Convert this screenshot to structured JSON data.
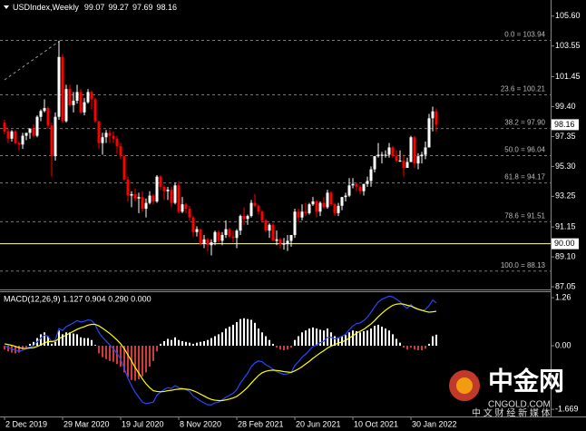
{
  "chart_data": [
    {
      "type": "candlestick",
      "title": "USDIndex,Weekly",
      "up_color": "#ffffff",
      "down_color": "#ff0000",
      "xlim": [
        -1.25,
        150.5
      ],
      "xticks": [
        {
          "value": 0,
          "label": "2 Dec 2019"
        },
        {
          "value": 16,
          "label": "29 Mar 2020"
        },
        {
          "value": 32,
          "label": "19 Jul 2020"
        },
        {
          "value": 48,
          "label": "8 Nov 2020"
        },
        {
          "value": 64,
          "label": "28 Feb 2021"
        },
        {
          "value": 80,
          "label": "20 Jun 2021"
        },
        {
          "value": 96,
          "label": "10 Oct 2021"
        },
        {
          "value": 112,
          "label": "30 Jan 2022"
        }
      ],
      "ylim": [
        86.93,
        106.58
      ],
      "yticks": [
        {
          "value": 105.6,
          "label": "105.60"
        },
        {
          "value": 103.55,
          "label": "103.55"
        },
        {
          "value": 101.45,
          "label": "101.45"
        },
        {
          "value": 99.4,
          "label": "99.40"
        },
        {
          "value": 97.35,
          "label": "97.35"
        },
        {
          "value": 95.3,
          "label": "95.30"
        },
        {
          "value": 93.25,
          "label": "93.25"
        },
        {
          "value": 91.15,
          "label": "91.15"
        },
        {
          "value": 89.1,
          "label": "89.10"
        },
        {
          "value": 87.05,
          "label": "87.05"
        }
      ],
      "fibonacci": [
        {
          "label": "0.0 = 103.94",
          "value": 103.94
        },
        {
          "label": "23.6 = 100.21",
          "value": 100.21
        },
        {
          "label": "38.2 = 97.90",
          "value": 97.9
        },
        {
          "label": "50.0 = 96.04",
          "value": 96.04
        },
        {
          "label": "61.8 = 94.17",
          "value": 94.17
        },
        {
          "label": "78.6 = 91.51",
          "value": 91.51
        },
        {
          "label": "100.0 = 88.13",
          "value": 88.13
        }
      ],
      "hline": {
        "value": 90.0,
        "label": "90.00",
        "color": "#ffffcc"
      },
      "ohlc": [
        [
          98.3,
          98.5,
          97.5,
          97.7
        ],
        [
          97.7,
          97.9,
          96.9,
          97.2
        ],
        [
          97.2,
          97.8,
          97.0,
          97.7
        ],
        [
          97.7,
          97.8,
          96.8,
          96.9
        ],
        [
          96.9,
          97.0,
          96.4,
          96.8
        ],
        [
          96.8,
          97.6,
          96.5,
          97.4
        ],
        [
          97.4,
          97.6,
          97.1,
          97.6
        ],
        [
          97.6,
          97.9,
          97.2,
          97.9
        ],
        [
          97.9,
          98.2,
          97.3,
          97.4
        ],
        [
          97.4,
          98.8,
          97.3,
          98.7
        ],
        [
          98.7,
          99.2,
          98.4,
          99.1
        ],
        [
          99.1,
          99.9,
          99.0,
          99.3
        ],
        [
          99.3,
          99.4,
          97.9,
          98.1
        ],
        [
          98.1,
          98.3,
          94.6,
          96.0
        ],
        [
          96.0,
          99.0,
          95.7,
          98.7
        ],
        [
          98.7,
          103.9,
          98.5,
          102.8
        ],
        [
          102.8,
          103.0,
          98.3,
          98.4
        ],
        [
          98.4,
          100.9,
          98.3,
          100.6
        ],
        [
          100.6,
          100.9,
          99.4,
          99.5
        ],
        [
          99.5,
          100.4,
          99.0,
          99.8
        ],
        [
          99.8,
          100.9,
          99.6,
          100.4
        ],
        [
          100.4,
          100.6,
          98.9,
          99.0
        ],
        [
          99.0,
          100.0,
          98.8,
          99.7
        ],
        [
          99.7,
          100.6,
          99.6,
          100.4
        ],
        [
          100.4,
          100.5,
          99.2,
          99.9
        ],
        [
          99.9,
          100.0,
          98.3,
          98.4
        ],
        [
          98.4,
          98.4,
          96.5,
          96.9
        ],
        [
          96.9,
          97.6,
          96.1,
          97.3
        ],
        [
          97.3,
          97.8,
          96.9,
          97.6
        ],
        [
          97.6,
          97.8,
          96.9,
          97.4
        ],
        [
          97.4,
          97.7,
          96.9,
          97.2
        ],
        [
          97.2,
          97.4,
          96.2,
          96.7
        ],
        [
          96.7,
          96.9,
          95.8,
          96.0
        ],
        [
          96.0,
          96.1,
          94.3,
          94.4
        ],
        [
          94.4,
          94.6,
          92.9,
          93.3
        ],
        [
          93.3,
          93.6,
          92.5,
          93.4
        ],
        [
          93.4,
          93.8,
          92.9,
          93.1
        ],
        [
          93.1,
          93.5,
          92.1,
          93.2
        ],
        [
          93.2,
          93.6,
          92.2,
          92.4
        ],
        [
          92.4,
          93.1,
          91.8,
          92.8
        ],
        [
          92.8,
          93.6,
          92.7,
          93.3
        ],
        [
          93.3,
          93.4,
          92.7,
          92.9
        ],
        [
          92.9,
          94.7,
          92.8,
          94.6
        ],
        [
          94.6,
          94.7,
          93.7,
          93.9
        ],
        [
          93.9,
          94.0,
          93.0,
          93.6
        ],
        [
          93.6,
          93.9,
          93.0,
          93.7
        ],
        [
          93.7,
          93.9,
          92.5,
          92.8
        ],
        [
          92.8,
          94.2,
          92.7,
          94.0
        ],
        [
          94.0,
          94.3,
          92.1,
          92.2
        ],
        [
          92.2,
          93.2,
          92.1,
          92.7
        ],
        [
          92.7,
          92.8,
          92.1,
          92.4
        ],
        [
          92.4,
          92.6,
          91.6,
          91.8
        ],
        [
          91.8,
          91.9,
          90.5,
          90.8
        ],
        [
          90.8,
          91.2,
          90.5,
          91.0
        ],
        [
          91.0,
          91.0,
          89.9,
          90.0
        ],
        [
          90.0,
          90.6,
          89.7,
          90.3
        ],
        [
          90.3,
          90.4,
          89.5,
          89.9
        ],
        [
          89.9,
          90.3,
          89.2,
          90.1
        ],
        [
          90.1,
          90.9,
          89.9,
          90.8
        ],
        [
          90.8,
          90.9,
          90.1,
          90.2
        ],
        [
          90.2,
          90.8,
          89.9,
          90.6
        ],
        [
          90.6,
          91.6,
          90.4,
          91.0
        ],
        [
          91.0,
          91.1,
          90.4,
          90.5
        ],
        [
          90.5,
          90.9,
          90.1,
          90.4
        ],
        [
          90.4,
          91.0,
          89.7,
          90.9
        ],
        [
          90.9,
          92.0,
          90.6,
          91.9
        ],
        [
          91.9,
          92.5,
          91.3,
          91.7
        ],
        [
          91.7,
          92.0,
          91.3,
          91.9
        ],
        [
          91.9,
          93.0,
          91.8,
          92.8
        ],
        [
          92.8,
          93.4,
          92.5,
          92.6
        ],
        [
          92.6,
          92.7,
          92.0,
          92.2
        ],
        [
          92.2,
          92.3,
          91.5,
          91.6
        ],
        [
          91.6,
          91.7,
          90.8,
          90.9
        ],
        [
          90.9,
          91.4,
          90.4,
          91.3
        ],
        [
          91.3,
          91.4,
          90.2,
          90.2
        ],
        [
          90.2,
          90.9,
          89.9,
          90.3
        ],
        [
          90.3,
          90.4,
          89.7,
          90.0
        ],
        [
          90.0,
          90.4,
          89.6,
          90.0
        ],
        [
          90.0,
          90.6,
          89.5,
          90.2
        ],
        [
          90.2,
          90.6,
          89.8,
          90.6
        ],
        [
          90.6,
          92.4,
          90.4,
          92.2
        ],
        [
          92.2,
          92.4,
          91.5,
          91.8
        ],
        [
          91.8,
          92.7,
          91.6,
          92.2
        ],
        [
          92.2,
          92.8,
          91.9,
          92.1
        ],
        [
          92.1,
          92.8,
          92.0,
          92.7
        ],
        [
          92.7,
          93.2,
          92.6,
          92.9
        ],
        [
          92.9,
          93.0,
          91.8,
          92.2
        ],
        [
          92.2,
          92.9,
          91.9,
          92.8
        ],
        [
          92.8,
          93.2,
          92.4,
          92.5
        ],
        [
          92.5,
          93.7,
          92.4,
          93.5
        ],
        [
          93.5,
          93.6,
          92.6,
          92.7
        ],
        [
          92.7,
          92.8,
          91.9,
          92.1
        ],
        [
          92.1,
          92.8,
          91.9,
          92.6
        ],
        [
          92.6,
          93.2,
          92.3,
          93.2
        ],
        [
          93.2,
          93.5,
          92.9,
          93.3
        ],
        [
          93.3,
          94.5,
          93.2,
          94.0
        ],
        [
          94.0,
          94.5,
          93.8,
          94.1
        ],
        [
          94.1,
          94.2,
          93.6,
          93.9
        ],
        [
          93.9,
          94.0,
          93.4,
          93.6
        ],
        [
          93.6,
          94.1,
          93.3,
          94.1
        ],
        [
          94.1,
          94.6,
          93.9,
          94.3
        ],
        [
          94.3,
          95.3,
          93.9,
          95.1
        ],
        [
          95.1,
          96.0,
          94.9,
          96.0
        ],
        [
          96.0,
          96.9,
          95.9,
          96.1
        ],
        [
          96.1,
          96.3,
          95.5,
          96.1
        ],
        [
          96.1,
          96.4,
          95.9,
          96.1
        ],
        [
          96.1,
          96.9,
          95.9,
          96.6
        ],
        [
          96.6,
          96.7,
          95.9,
          96.0
        ],
        [
          96.0,
          96.4,
          95.6,
          95.7
        ],
        [
          95.7,
          96.4,
          95.6,
          95.7
        ],
        [
          95.7,
          96.1,
          94.6,
          95.2
        ],
        [
          95.2,
          95.9,
          95.2,
          95.6
        ],
        [
          95.6,
          97.4,
          95.6,
          97.3
        ],
        [
          97.3,
          97.4,
          95.2,
          95.5
        ],
        [
          95.5,
          96.2,
          95.1,
          96.0
        ],
        [
          96.0,
          96.3,
          95.5,
          96.1
        ],
        [
          96.1,
          97.0,
          95.8,
          96.6
        ],
        [
          96.6,
          98.9,
          96.6,
          98.6
        ],
        [
          98.6,
          99.4,
          97.7,
          99.07
        ],
        [
          99.07,
          99.27,
          97.69,
          98.16
        ]
      ]
    },
    {
      "type": "macd",
      "title": "MACD(12,26,9) 1.127 0.904 0.290 0.000",
      "ylim": [
        -1.833,
        1.405
      ],
      "yticks": [
        1.26,
        {
          "value": 0,
          "label": "0.00"
        },
        -1.669
      ],
      "histogram": {
        "up_color": "#ffffff",
        "down_color": "#d03a3a",
        "values": [
          -0.1,
          -0.15,
          -0.18,
          -0.2,
          -0.18,
          -0.1,
          -0.05,
          0.05,
          0.1,
          0.2,
          0.3,
          0.35,
          0.25,
          0.05,
          0.1,
          0.4,
          0.3,
          0.35,
          0.35,
          0.32,
          0.3,
          0.22,
          0.2,
          0.2,
          0.15,
          0.02,
          -0.2,
          -0.3,
          -0.35,
          -0.4,
          -0.42,
          -0.48,
          -0.55,
          -0.7,
          -0.82,
          -0.9,
          -0.92,
          -0.88,
          -0.8,
          -0.7,
          -0.55,
          -0.4,
          -0.15,
          0.05,
          0.12,
          0.18,
          0.15,
          0.22,
          0.15,
          0.12,
          0.1,
          0.08,
          0.05,
          0.08,
          0.1,
          0.12,
          0.15,
          0.2,
          0.25,
          0.3,
          0.35,
          0.45,
          0.5,
          0.55,
          0.62,
          0.7,
          0.72,
          0.7,
          0.68,
          0.6,
          0.45,
          0.35,
          0.25,
          0.15,
          0.05,
          -0.05,
          -0.1,
          -0.12,
          -0.1,
          -0.05,
          0.15,
          0.25,
          0.35,
          0.4,
          0.45,
          0.48,
          0.45,
          0.42,
          0.4,
          0.45,
          0.35,
          0.25,
          0.22,
          0.25,
          0.28,
          0.35,
          0.4,
          0.38,
          0.35,
          0.38,
          0.4,
          0.45,
          0.52,
          0.55,
          0.5,
          0.45,
          0.4,
          0.3,
          0.18,
          0.08,
          -0.05,
          -0.1,
          -0.05,
          -0.1,
          -0.12,
          -0.12,
          -0.08,
          0.05,
          0.25,
          0.29
        ]
      },
      "macd_line": {
        "color": "#2846ff",
        "values": [
          0.0,
          -0.05,
          -0.08,
          -0.12,
          -0.15,
          -0.12,
          -0.08,
          -0.03,
          0.0,
          0.1,
          0.2,
          0.28,
          0.25,
          0.1,
          0.15,
          0.45,
          0.4,
          0.5,
          0.55,
          0.6,
          0.66,
          0.62,
          0.64,
          0.68,
          0.66,
          0.55,
          0.35,
          0.22,
          0.12,
          0.02,
          -0.08,
          -0.2,
          -0.35,
          -0.6,
          -0.85,
          -1.05,
          -1.22,
          -1.35,
          -1.48,
          -1.52,
          -1.5,
          -1.48,
          -1.3,
          -1.22,
          -1.15,
          -1.1,
          -1.12,
          -1.05,
          -1.1,
          -1.12,
          -1.15,
          -1.2,
          -1.32,
          -1.38,
          -1.45,
          -1.5,
          -1.55,
          -1.55,
          -1.5,
          -1.48,
          -1.42,
          -1.35,
          -1.3,
          -1.25,
          -1.15,
          -0.98,
          -0.85,
          -0.72,
          -0.55,
          -0.45,
          -0.4,
          -0.42,
          -0.5,
          -0.55,
          -0.62,
          -0.68,
          -0.72,
          -0.75,
          -0.74,
          -0.7,
          -0.52,
          -0.42,
          -0.3,
          -0.22,
          -0.12,
          -0.02,
          0.02,
          0.08,
          0.12,
          0.22,
          0.22,
          0.18,
          0.2,
          0.25,
          0.3,
          0.42,
          0.52,
          0.58,
          0.6,
          0.66,
          0.75,
          0.88,
          1.02,
          1.15,
          1.22,
          1.26,
          1.3,
          1.28,
          1.22,
          1.15,
          1.05,
          0.98,
          1.08,
          0.98,
          0.95,
          0.92,
          0.95,
          1.05,
          1.2,
          1.127
        ]
      },
      "signal_line": {
        "color": "#ffff00",
        "values": [
          0.05,
          0.03,
          0.01,
          -0.02,
          -0.05,
          -0.07,
          -0.07,
          -0.06,
          -0.05,
          -0.02,
          0.02,
          0.07,
          0.11,
          0.11,
          0.12,
          0.19,
          0.23,
          0.28,
          0.33,
          0.38,
          0.43,
          0.47,
          0.5,
          0.54,
          0.56,
          0.56,
          0.52,
          0.46,
          0.39,
          0.32,
          0.24,
          0.15,
          0.05,
          -0.08,
          -0.24,
          -0.4,
          -0.57,
          -0.72,
          -0.87,
          -1.0,
          -1.1,
          -1.18,
          -1.2,
          -1.21,
          -1.2,
          -1.18,
          -1.17,
          -1.15,
          -1.14,
          -1.13,
          -1.14,
          -1.15,
          -1.18,
          -1.22,
          -1.27,
          -1.32,
          -1.37,
          -1.41,
          -1.43,
          -1.44,
          -1.44,
          -1.42,
          -1.4,
          -1.37,
          -1.33,
          -1.26,
          -1.18,
          -1.09,
          -0.98,
          -0.88,
          -0.78,
          -0.71,
          -0.67,
          -0.65,
          -0.64,
          -0.65,
          -0.66,
          -0.68,
          -0.69,
          -0.7,
          -0.66,
          -0.61,
          -0.55,
          -0.48,
          -0.41,
          -0.33,
          -0.26,
          -0.19,
          -0.13,
          -0.06,
          -0.01,
          0.03,
          0.07,
          0.1,
          0.14,
          0.2,
          0.26,
          0.33,
          0.38,
          0.43,
          0.5,
          0.57,
          0.66,
          0.76,
          0.85,
          0.93,
          1.0,
          1.06,
          1.09,
          1.1,
          1.09,
          1.06,
          1.04,
          1.0,
          0.96,
          0.93,
          0.9,
          0.88,
          0.89,
          0.904
        ]
      }
    }
  ],
  "watermark": {
    "brand": "中金网",
    "site": "CNGOLD.COM",
    "slogan": "中 文 财 经 新 媒 体"
  }
}
